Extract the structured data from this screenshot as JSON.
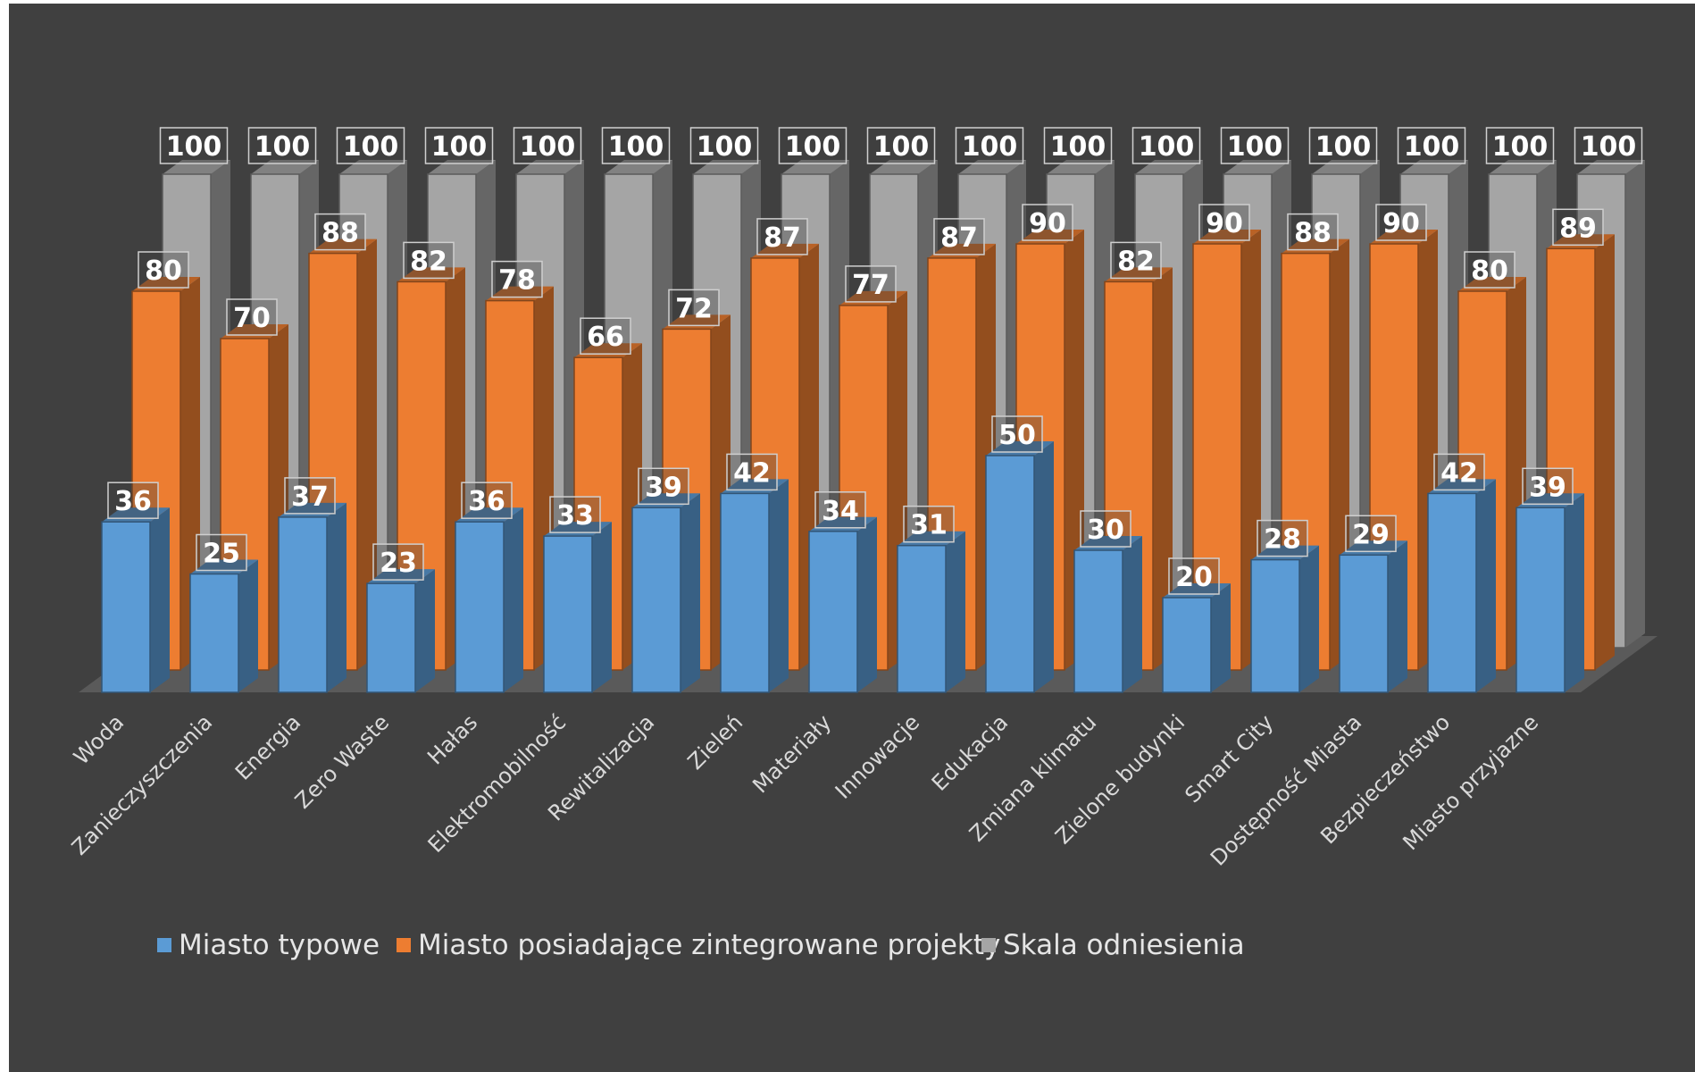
{
  "chart_data": {
    "type": "bar",
    "variant": "3d-clustered-column",
    "categories": [
      "Woda",
      "Zanieczyszczenia",
      "Energia",
      "Zero Waste",
      "Hałas",
      "Elektromobilność",
      "Rewitalizacja",
      "Zieleń",
      "Materiały",
      "Innowacje",
      "Edukacja",
      "Zmiana klimatu",
      "Zielone budynki",
      "Smart City",
      "Dostępność Miasta",
      "Bezpieczeństwo",
      "Miasto przyjazne"
    ],
    "series": [
      {
        "name": "Miasto typowe",
        "color": "#5b9bd5",
        "values": [
          36,
          25,
          37,
          23,
          36,
          33,
          39,
          42,
          34,
          31,
          50,
          30,
          20,
          28,
          29,
          42,
          39
        ]
      },
      {
        "name": "Miasto posiadające zintegrowane projekty",
        "color": "#ed7d31",
        "values": [
          80,
          70,
          88,
          82,
          78,
          66,
          72,
          87,
          77,
          87,
          90,
          82,
          90,
          88,
          90,
          80,
          89
        ]
      },
      {
        "name": "Skala odniesienia",
        "color": "#a5a5a5",
        "values": [
          100,
          100,
          100,
          100,
          100,
          100,
          100,
          100,
          100,
          100,
          100,
          100,
          100,
          100,
          100,
          100,
          100
        ]
      }
    ],
    "ylim": [
      0,
      100
    ],
    "grid": false,
    "data_labels": true,
    "legend_position": "bottom"
  },
  "colors": {
    "background": "#404040",
    "floor": "#5a5a5a",
    "category_text": "#d9d9d9",
    "legend_text": "#e6e6e6",
    "data_label_text": "#ffffff"
  }
}
